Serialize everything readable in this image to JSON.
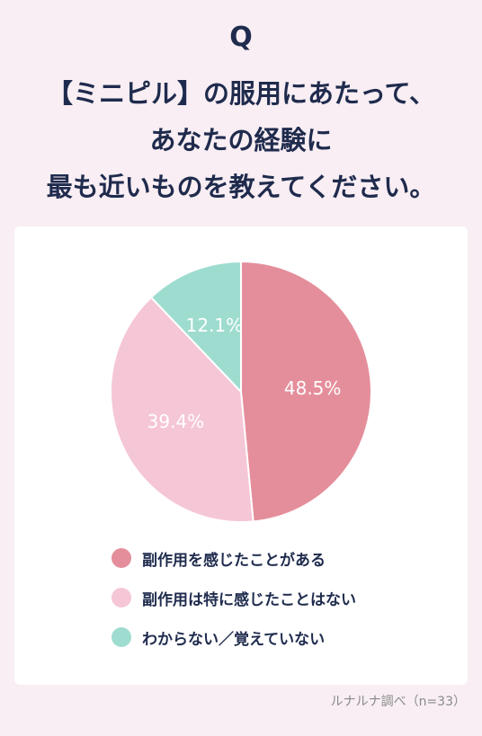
{
  "header": {
    "q_mark": "Q",
    "question_lines": [
      "【ミニピル】の服用にあたって、",
      "あなたの経験に",
      "最も近いものを教えてください。"
    ]
  },
  "chart_data": {
    "type": "pie",
    "title": "",
    "slices": [
      {
        "label": "副作用を感じたことがある",
        "value": 48.5,
        "value_label": "48.5%",
        "color": "#e58e9b"
      },
      {
        "label": "副作用は特に感じたことはない",
        "value": 39.4,
        "value_label": "39.4%",
        "color": "#f5c6d6"
      },
      {
        "label": "わからない／覚えていない",
        "value": 12.1,
        "value_label": "12.1%",
        "color": "#9fdcd0"
      }
    ],
    "legend_placement": "bottom"
  },
  "footer": {
    "source": "ルナルナ調べ（n=33）"
  }
}
